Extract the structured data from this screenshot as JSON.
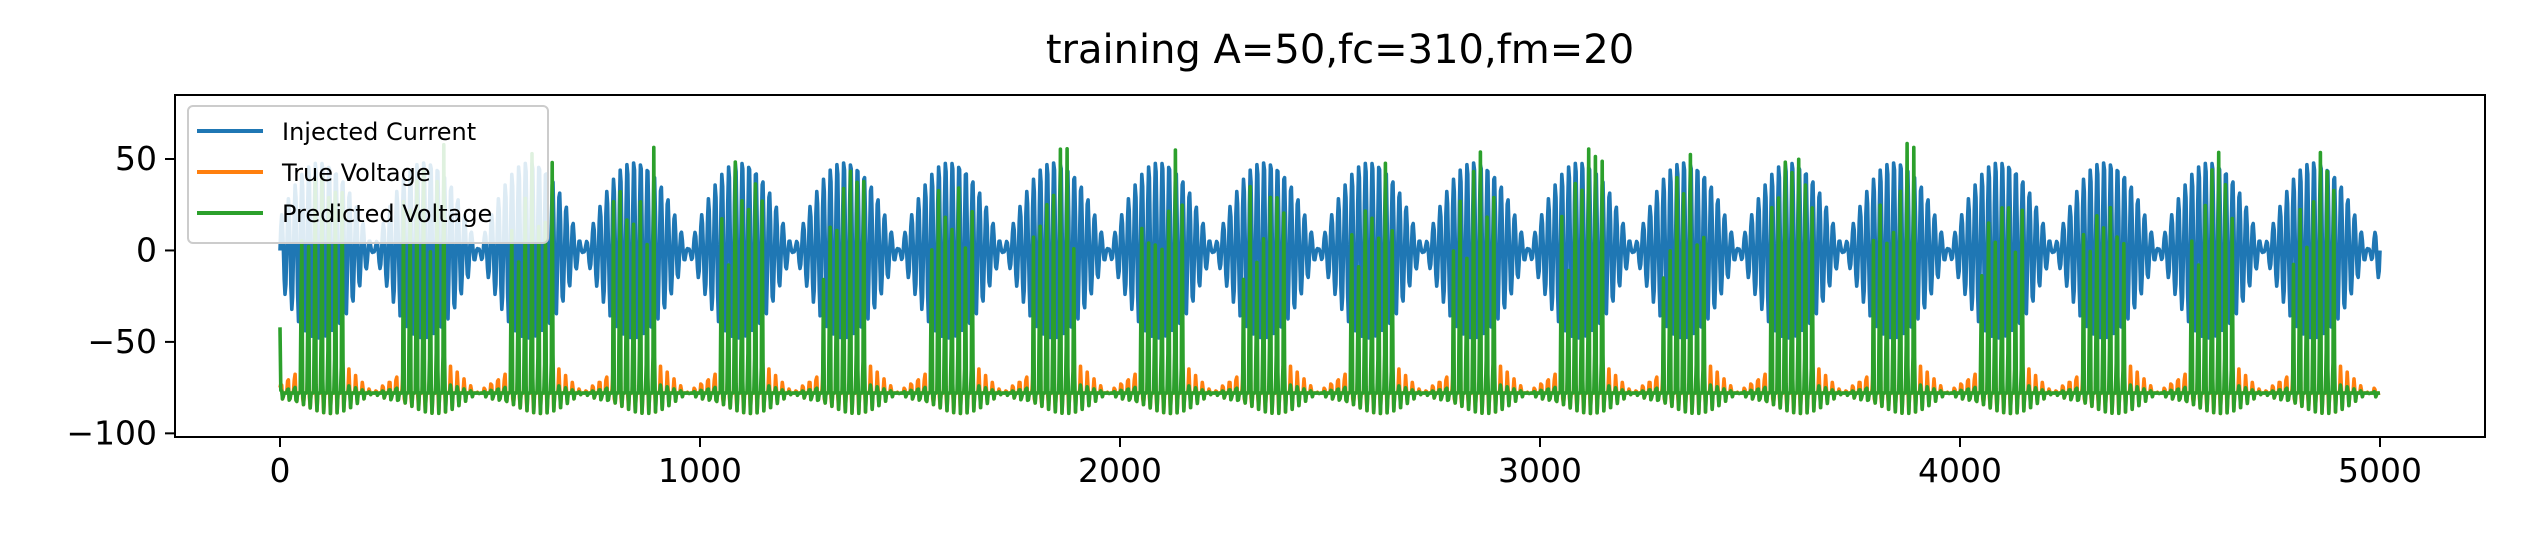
{
  "chart_data": {
    "type": "line",
    "title": "training A=50,fc=310,fm=20",
    "xlabel": "",
    "ylabel": "",
    "xlim": [
      -250,
      5250
    ],
    "ylim": [
      -102,
      85
    ],
    "xticks": [
      0,
      1000,
      2000,
      3000,
      4000,
      5000
    ],
    "xtick_labels": [
      "0",
      "1000",
      "2000",
      "3000",
      "4000",
      "5000"
    ],
    "yticks": [
      -100,
      -50,
      0,
      50
    ],
    "ytick_labels": [
      "−100",
      "−50",
      "0",
      "50"
    ],
    "grid": false,
    "legend_position": "top-left",
    "x_range": [
      0,
      5000
    ],
    "signal_model": {
      "injected_current": {
        "amplitude": 50,
        "cycles_per_1000": 62,
        "modulation_cycles_per_1000": 4
      },
      "voltage_rest": -78,
      "voltage_min": -92,
      "predicted_spike_peak": 62,
      "true_subthreshold_peak": -58
    },
    "series": [
      {
        "name": "Injected Current",
        "color": "#1f77b4"
      },
      {
        "name": "True Voltage",
        "color": "#ff7f0e"
      },
      {
        "name": "Predicted Voltage",
        "color": "#2ca02c"
      }
    ]
  }
}
